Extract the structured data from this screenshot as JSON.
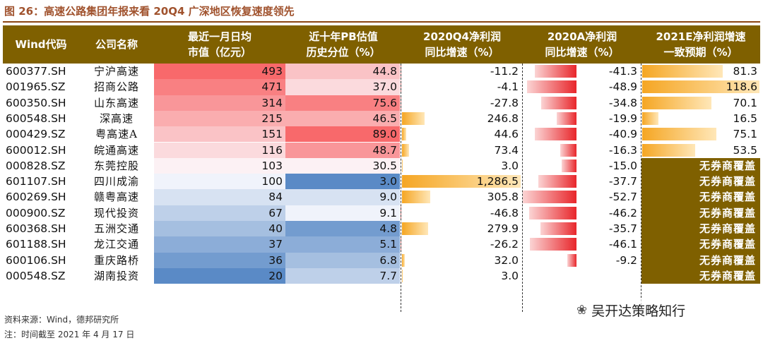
{
  "figure": {
    "title": "图 26：高速公路集团年报来看 20Q4 广深地区恢复速度领先",
    "source": "资料来源：Wind，德邦研究所",
    "note": "注：时间截至 2021 年 4 月 17 日",
    "watermark": "吴开达策略知行"
  },
  "headers": {
    "code": "Wind代码",
    "name": "公司名称",
    "mv": [
      "最近一月日均",
      "市值（亿元）"
    ],
    "pb": [
      "近十年PB估值",
      "历史分位（%）"
    ],
    "q4": [
      "2020Q4净利润",
      "同比增速（%）"
    ],
    "a20": [
      "2020A净利润",
      "同比增速（%）"
    ],
    "e21": [
      "2021E净利润增速",
      "一致预期（%）"
    ]
  },
  "no_coverage_label": "无券商覆盖",
  "colors": {
    "header_bg": "#7f6000",
    "title": "#a0522d",
    "bar_orange": "#f5a623",
    "bar_red": "#e8262b",
    "heat_high": "#f8696b",
    "heat_mid": "#fcfcff",
    "heat_low": "#5a8ac6"
  },
  "chart_data": {
    "type": "table",
    "columns": [
      "Wind代码",
      "公司名称",
      "最近一月日均市值（亿元）",
      "近十年PB估值历史分位（%）",
      "2020Q4净利润同比增速（%）",
      "2020A净利润同比增速（%）",
      "2021E净利润增速一致预期（%）"
    ],
    "rows": [
      {
        "code": "600377.SH",
        "name": "宁沪高速",
        "mv": 493,
        "pb": 44.8,
        "q4": -11.2,
        "a20": -41.3,
        "e21": 81.3,
        "mv_text": "493",
        "pb_text": "44.8",
        "q4_text": "-11.2",
        "a20_text": "-41.3",
        "e21_text": "81.3"
      },
      {
        "code": "001965.SZ",
        "name": "招商公路",
        "mv": 471,
        "pb": 37.0,
        "q4": -4.1,
        "a20": -48.9,
        "e21": 118.6,
        "mv_text": "471",
        "pb_text": "37.0",
        "q4_text": "-4.1",
        "a20_text": "-48.9",
        "e21_text": "118.6"
      },
      {
        "code": "600350.SH",
        "name": "山东高速",
        "mv": 314,
        "pb": 75.6,
        "q4": -27.8,
        "a20": -34.8,
        "e21": 70.1,
        "mv_text": "314",
        "pb_text": "75.6",
        "q4_text": "-27.8",
        "a20_text": "-34.8",
        "e21_text": "70.1"
      },
      {
        "code": "600548.SH",
        "name": "深高速",
        "mv": 215,
        "pb": 46.5,
        "q4": 246.8,
        "a20": -19.9,
        "e21": 16.5,
        "mv_text": "215",
        "pb_text": "46.5",
        "q4_text": "246.8",
        "a20_text": "-19.9",
        "e21_text": "16.5"
      },
      {
        "code": "000429.SZ",
        "name": "粤高速A",
        "mv": 151,
        "pb": 89.0,
        "q4": 44.6,
        "a20": -40.9,
        "e21": 75.1,
        "mv_text": "151",
        "pb_text": "89.0",
        "q4_text": "44.6",
        "a20_text": "-40.9",
        "e21_text": "75.1"
      },
      {
        "code": "600012.SH",
        "name": "皖通高速",
        "mv": 116,
        "pb": 48.7,
        "q4": 73.4,
        "a20": -16.3,
        "e21": 53.5,
        "mv_text": "116",
        "pb_text": "48.7",
        "q4_text": "73.4",
        "a20_text": "-16.3",
        "e21_text": "53.5"
      },
      {
        "code": "000828.SZ",
        "name": "东莞控股",
        "mv": 103,
        "pb": 30.5,
        "q4": 3.0,
        "a20": -15.0,
        "e21": null,
        "mv_text": "103",
        "pb_text": "30.5",
        "q4_text": "3.0",
        "a20_text": "-15.0",
        "e21_text": null
      },
      {
        "code": "601107.SH",
        "name": "四川成渝",
        "mv": 100,
        "pb": 3.0,
        "q4": 1286.5,
        "a20": -37.7,
        "e21": null,
        "mv_text": "100",
        "pb_text": "3.0",
        "q4_text": "1,286.5",
        "a20_text": "-37.7",
        "e21_text": null
      },
      {
        "code": "600269.SH",
        "name": "赣粤高速",
        "mv": 84,
        "pb": 9.0,
        "q4": 305.8,
        "a20": -52.7,
        "e21": null,
        "mv_text": "84",
        "pb_text": "9.0",
        "q4_text": "305.8",
        "a20_text": "-52.7",
        "e21_text": null
      },
      {
        "code": "000900.SZ",
        "name": "现代投资",
        "mv": 67,
        "pb": 9.1,
        "q4": -46.8,
        "a20": -46.2,
        "e21": null,
        "mv_text": "67",
        "pb_text": "9.1",
        "q4_text": "-46.8",
        "a20_text": "-46.2",
        "e21_text": null
      },
      {
        "code": "600368.SH",
        "name": "五洲交通",
        "mv": 40,
        "pb": 4.8,
        "q4": 279.9,
        "a20": -35.7,
        "e21": null,
        "mv_text": "40",
        "pb_text": "4.8",
        "q4_text": "279.9",
        "a20_text": "-35.7",
        "e21_text": null
      },
      {
        "code": "601188.SH",
        "name": "龙江交通",
        "mv": 37,
        "pb": 5.1,
        "q4": -26.2,
        "a20": -46.1,
        "e21": null,
        "mv_text": "37",
        "pb_text": "5.1",
        "q4_text": "-26.2",
        "a20_text": "-46.1",
        "e21_text": null
      },
      {
        "code": "600106.SH",
        "name": "重庆路桥",
        "mv": 36,
        "pb": 6.8,
        "q4": 32.0,
        "a20": -9.2,
        "e21": null,
        "mv_text": "36",
        "pb_text": "6.8",
        "q4_text": "32.0",
        "a20_text": "-9.2",
        "e21_text": null
      },
      {
        "code": "000548.SZ",
        "name": "湖南投资",
        "mv": 20,
        "pb": 7.7,
        "q4": 3.0,
        "a20": null,
        "e21": null,
        "mv_text": "20",
        "pb_text": "7.7",
        "q4_text": "3.0",
        "a20_text": null,
        "e21_text": null
      }
    ]
  }
}
